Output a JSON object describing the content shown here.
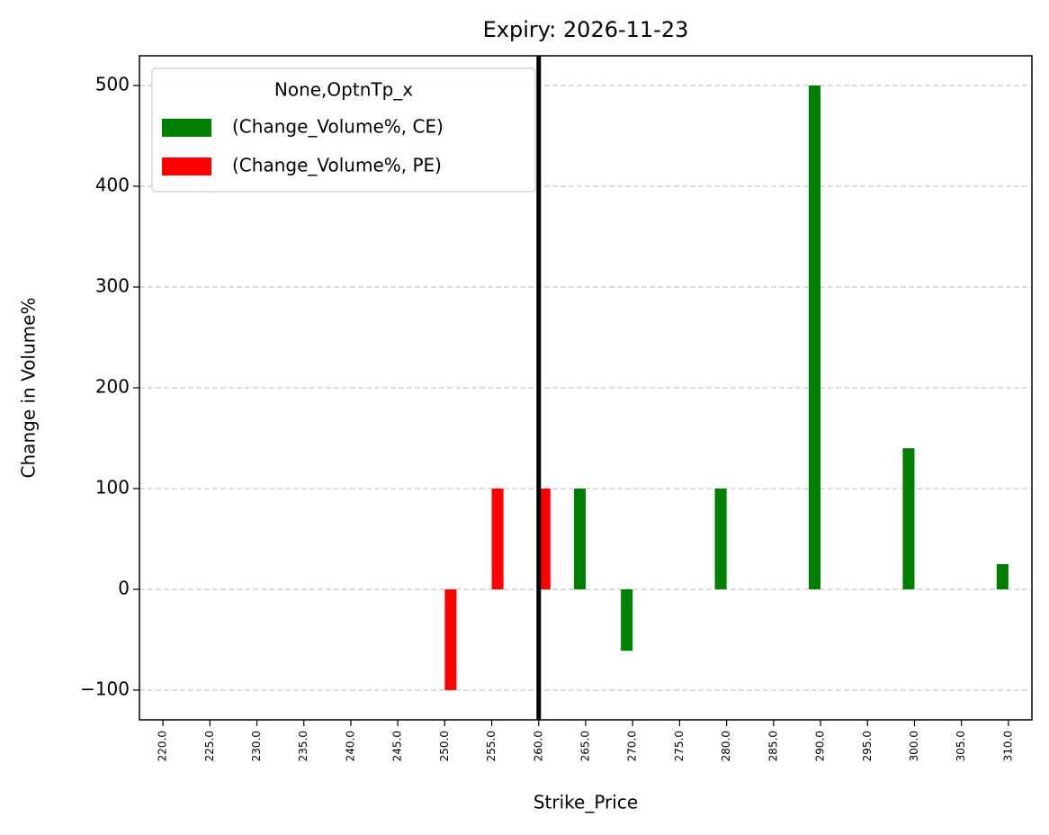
{
  "chart_data": {
    "type": "bar",
    "title": "Expiry: 2026-11-23",
    "x_label": "Strike_Price",
    "y_label": "Change in Volume%",
    "legend_title": "None,OptnTp_x",
    "legend_position": "upper left",
    "categories": [
      "220.0",
      "225.0",
      "230.0",
      "235.0",
      "240.0",
      "245.0",
      "250.0",
      "255.0",
      "260.0",
      "265.0",
      "270.0",
      "275.0",
      "280.0",
      "285.0",
      "290.0",
      "295.0",
      "300.0",
      "305.0",
      "310.0"
    ],
    "series": [
      {
        "name": "(Change_Volume%, CE)",
        "color": "#008000",
        "values": [
          null,
          null,
          null,
          null,
          null,
          null,
          null,
          null,
          null,
          100,
          -61,
          null,
          100,
          null,
          500,
          null,
          140,
          null,
          25
        ]
      },
      {
        "name": "(Change_Volume%, PE)",
        "color": "#ff0000",
        "values": [
          null,
          null,
          null,
          null,
          null,
          null,
          -100,
          100,
          100,
          null,
          null,
          null,
          null,
          null,
          null,
          null,
          null,
          null,
          null
        ]
      }
    ],
    "ylim": [
      -129.5,
      529.5
    ],
    "yticks": [
      {
        "value": -100,
        "label": "−100"
      },
      0,
      100,
      200,
      300,
      400,
      500
    ],
    "grid": true,
    "vline": "260.0"
  }
}
